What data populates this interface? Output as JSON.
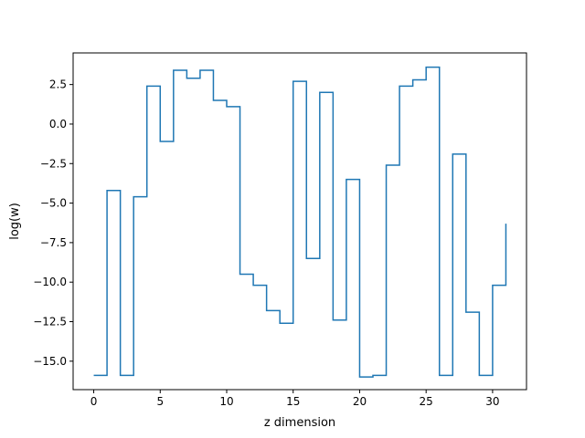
{
  "chart_data": {
    "type": "line",
    "drawstyle": "steps-post",
    "title": "",
    "xlabel": "z dimension",
    "ylabel": "log(w)",
    "grid": false,
    "xlim": [
      -1.55,
      32.55
    ],
    "ylim": [
      -16.8,
      4.5
    ],
    "xticks": [
      0,
      5,
      10,
      15,
      20,
      25,
      30
    ],
    "xtick_labels": [
      "0",
      "5",
      "10",
      "15",
      "20",
      "25",
      "30"
    ],
    "yticks": [
      -15.0,
      -12.5,
      -10.0,
      -7.5,
      -5.0,
      -2.5,
      0.0,
      2.5
    ],
    "ytick_labels": [
      "−15.0",
      "−12.5",
      "−10.0",
      "−7.5",
      "−5.0",
      "−2.5",
      "0.0",
      "2.5"
    ],
    "color": "#1f77b4",
    "series": [
      {
        "x": [
          0,
          1,
          2,
          3,
          4,
          5,
          6,
          7,
          8,
          9,
          10,
          11,
          12,
          13,
          14,
          15,
          16,
          17,
          18,
          19,
          20,
          21,
          22,
          23,
          24,
          25,
          26,
          27,
          28,
          29,
          30,
          31
        ],
        "y": [
          -15.9,
          -4.2,
          -15.9,
          -4.6,
          2.4,
          -1.1,
          3.4,
          2.9,
          3.4,
          1.5,
          1.1,
          -9.5,
          -10.2,
          -11.8,
          -12.6,
          2.7,
          -8.5,
          2.0,
          -12.4,
          -3.5,
          -16.0,
          -15.9,
          -2.6,
          2.4,
          2.8,
          3.6,
          -15.9,
          -1.9,
          -11.9,
          -15.9,
          -10.2,
          -6.3
        ]
      }
    ]
  }
}
